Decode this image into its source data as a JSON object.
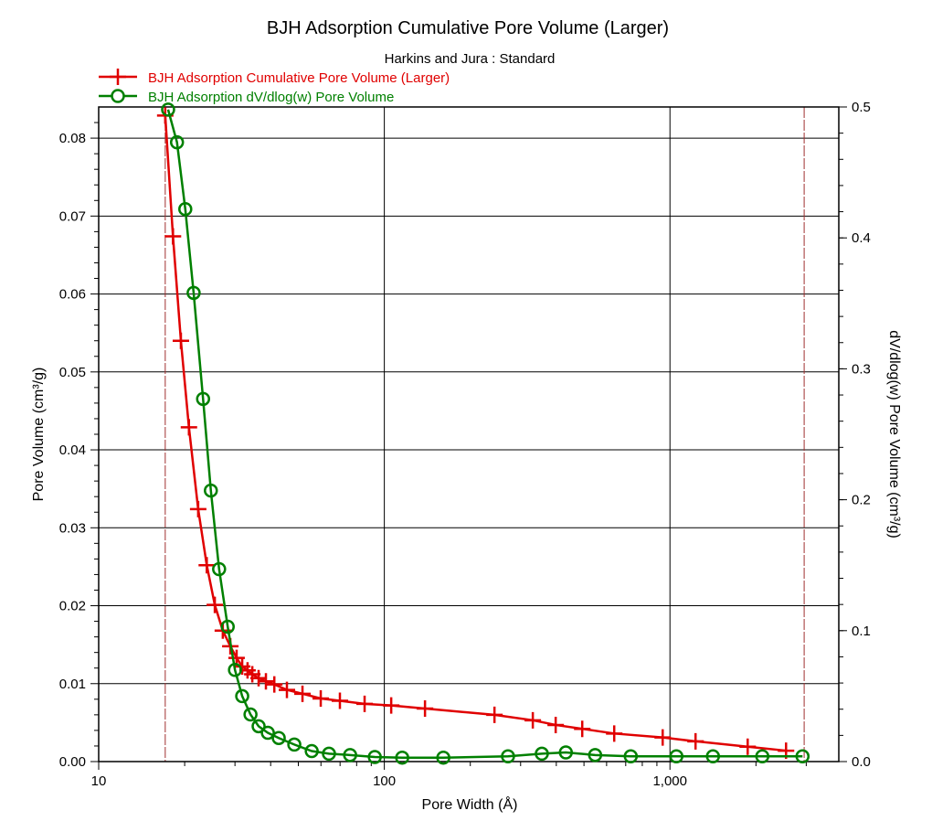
{
  "chart_data": {
    "type": "line",
    "title": "BJH Adsorption Cumulative Pore Volume (Larger)",
    "subtitle": "Harkins and Jura : Standard",
    "xlabel": "Pore Width (Å)",
    "ylabel": "Pore Volume (cm³/g)",
    "y2label": "dV/dlog(w) Pore Volume (cm³/g)",
    "xscale": "log",
    "xlim": [
      10,
      3900
    ],
    "ylim": [
      0,
      0.084
    ],
    "y2lim": [
      0,
      0.5
    ],
    "grid": true,
    "legend_position": "top-left",
    "x_ticks": [
      {
        "v": 10,
        "label": "10"
      },
      {
        "v": 100,
        "label": "100"
      },
      {
        "v": 1000,
        "label": "1,000"
      }
    ],
    "y_ticks": [
      "0.00",
      "0.01",
      "0.02",
      "0.03",
      "0.04",
      "0.05",
      "0.06",
      "0.07",
      "0.08"
    ],
    "y2_ticks": [
      "0.0",
      "0.1",
      "0.2",
      "0.3",
      "0.4",
      "0.5"
    ],
    "reference_lines_x": [
      17.1,
      2950
    ],
    "colors": {
      "cumulative": "#e00000",
      "dvdlogw": "#008000",
      "reference": "#a03030"
    },
    "series": [
      {
        "name": "BJH Adsorption Cumulative Pore Volume (Larger)",
        "axis": "left",
        "marker": "plus",
        "color": "#e00000",
        "x": [
          17.1,
          18.2,
          19.4,
          20.7,
          22.3,
          23.9,
          25.5,
          27.2,
          28.9,
          30.4,
          31.8,
          33.2,
          34.5,
          36.3,
          38.5,
          41.2,
          45.6,
          51.7,
          59.9,
          69.9,
          85.3,
          105.7,
          138.8,
          243,
          331,
          398,
          493,
          638,
          943,
          1229,
          1871,
          2549
        ],
        "y": [
          0.0829,
          0.0674,
          0.054,
          0.0429,
          0.0324,
          0.0252,
          0.0201,
          0.0168,
          0.0148,
          0.0133,
          0.0122,
          0.0117,
          0.0112,
          0.0107,
          0.0103,
          0.0099,
          0.0092,
          0.0087,
          0.0081,
          0.0078,
          0.0074,
          0.0072,
          0.0068,
          0.006,
          0.0053,
          0.0047,
          0.0042,
          0.0036,
          0.0031,
          0.0026,
          0.0019,
          0.0014
        ]
      },
      {
        "name": "BJH Adsorption dV/dlog(w) Pore Volume",
        "axis": "right",
        "marker": "circle",
        "color": "#008000",
        "x": [
          17.5,
          18.8,
          20.1,
          21.5,
          23.2,
          24.7,
          26.4,
          28.3,
          30.0,
          31.8,
          34.0,
          36.3,
          39.1,
          42.7,
          48.4,
          55.7,
          64.0,
          75.9,
          92.6,
          115.5,
          160.9,
          271,
          356,
          432,
          547,
          729,
          1053,
          1414,
          2105,
          2911
        ],
        "y": [
          0.498,
          0.473,
          0.422,
          0.358,
          0.277,
          0.207,
          0.147,
          0.103,
          0.07,
          0.05,
          0.036,
          0.027,
          0.022,
          0.018,
          0.013,
          0.008,
          0.006,
          0.005,
          0.0035,
          0.003,
          0.003,
          0.004,
          0.006,
          0.007,
          0.005,
          0.004,
          0.004,
          0.004,
          0.004,
          0.004
        ]
      }
    ]
  }
}
